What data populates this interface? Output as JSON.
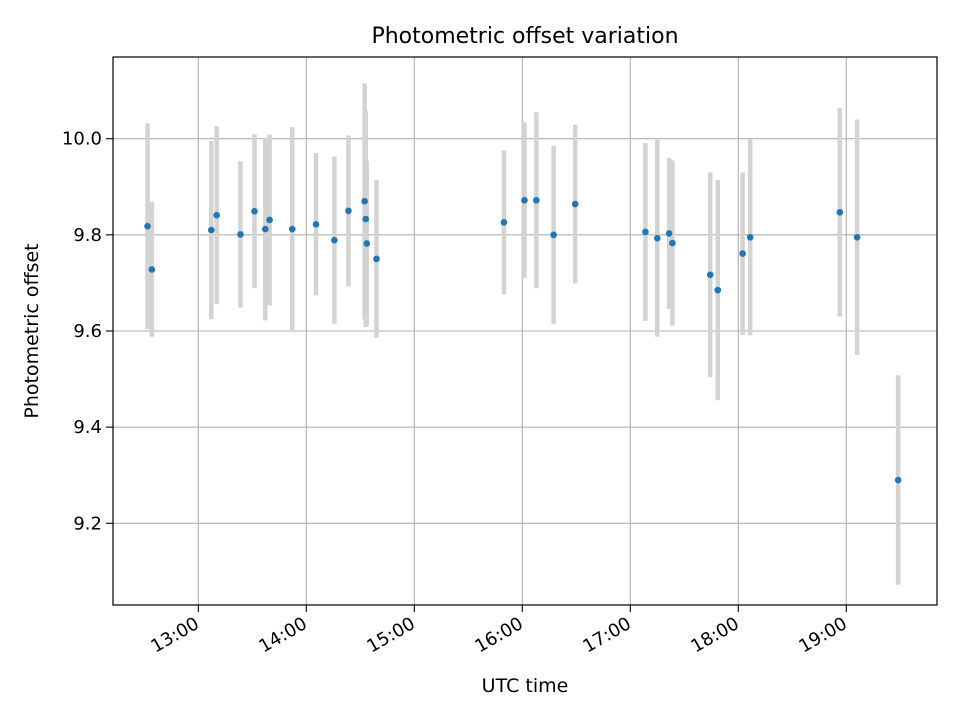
{
  "chart_data": {
    "type": "scatter",
    "title": "Photometric offset variation",
    "xlabel": "UTC time",
    "ylabel": "Photometric offset",
    "x_ticks": [
      "13:00",
      "14:00",
      "15:00",
      "16:00",
      "17:00",
      "18:00",
      "19:00"
    ],
    "x_tick_values": [
      13.0,
      14.0,
      15.0,
      16.0,
      17.0,
      18.0,
      19.0
    ],
    "y_ticks": [
      "9.2",
      "9.4",
      "9.6",
      "9.8",
      "10.0"
    ],
    "y_tick_values": [
      9.2,
      9.4,
      9.6,
      9.8,
      10.0
    ],
    "xlim": [
      12.21,
      19.84
    ],
    "ylim": [
      9.03,
      10.17
    ],
    "grid": true,
    "marker_color": "#1f77b4",
    "errorbar_color": "#d3d3d3",
    "series": [
      {
        "points": [
          {
            "x": 12.53,
            "y": 9.818,
            "err": 0.214
          },
          {
            "x": 12.57,
            "y": 9.728,
            "err": 0.14
          },
          {
            "x": 13.12,
            "y": 9.81,
            "err": 0.185
          },
          {
            "x": 13.17,
            "y": 9.841,
            "err": 0.185
          },
          {
            "x": 13.39,
            "y": 9.801,
            "err": 0.152
          },
          {
            "x": 13.52,
            "y": 9.849,
            "err": 0.16
          },
          {
            "x": 13.62,
            "y": 9.812,
            "err": 0.19
          },
          {
            "x": 13.66,
            "y": 9.831,
            "err": 0.178
          },
          {
            "x": 13.87,
            "y": 9.812,
            "err": 0.212
          },
          {
            "x": 14.09,
            "y": 9.822,
            "err": 0.148
          },
          {
            "x": 14.26,
            "y": 9.789,
            "err": 0.174
          },
          {
            "x": 14.39,
            "y": 9.85,
            "err": 0.157
          },
          {
            "x": 14.54,
            "y": 9.87,
            "err": 0.245
          },
          {
            "x": 14.55,
            "y": 9.833,
            "err": 0.225
          },
          {
            "x": 14.56,
            "y": 9.782,
            "err": 0.172
          },
          {
            "x": 14.65,
            "y": 9.75,
            "err": 0.164
          },
          {
            "x": 15.83,
            "y": 9.826,
            "err": 0.15
          },
          {
            "x": 16.02,
            "y": 9.872,
            "err": 0.162
          },
          {
            "x": 16.13,
            "y": 9.872,
            "err": 0.183
          },
          {
            "x": 16.29,
            "y": 9.8,
            "err": 0.185
          },
          {
            "x": 16.49,
            "y": 9.864,
            "err": 0.165
          },
          {
            "x": 17.14,
            "y": 9.806,
            "err": 0.185
          },
          {
            "x": 17.25,
            "y": 9.793,
            "err": 0.205
          },
          {
            "x": 17.36,
            "y": 9.803,
            "err": 0.157
          },
          {
            "x": 17.39,
            "y": 9.783,
            "err": 0.172
          },
          {
            "x": 17.74,
            "y": 9.717,
            "err": 0.213
          },
          {
            "x": 17.81,
            "y": 9.685,
            "err": 0.229
          },
          {
            "x": 18.04,
            "y": 9.761,
            "err": 0.169
          },
          {
            "x": 18.11,
            "y": 9.795,
            "err": 0.204
          },
          {
            "x": 18.94,
            "y": 9.847,
            "err": 0.217
          },
          {
            "x": 19.1,
            "y": 9.795,
            "err": 0.245
          },
          {
            "x": 19.48,
            "y": 9.29,
            "err": 0.218
          }
        ]
      }
    ]
  }
}
